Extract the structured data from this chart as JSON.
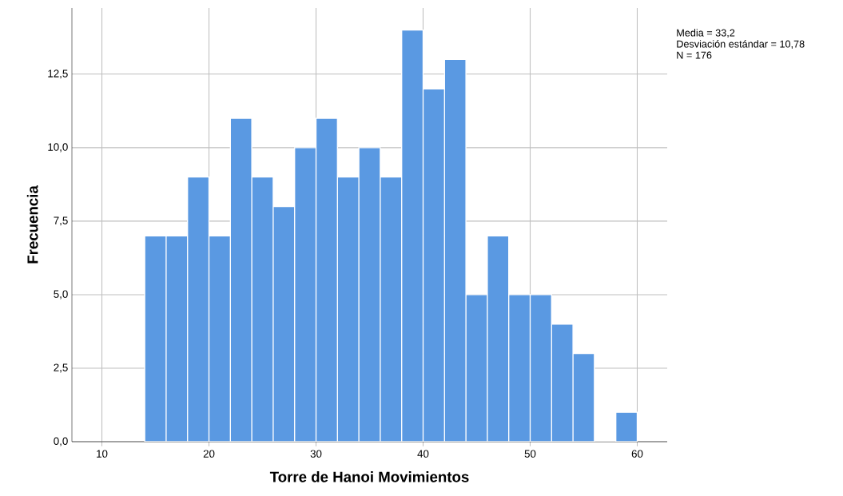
{
  "chart_data": {
    "type": "histogram",
    "xlabel": "Torre de Hanoi Movimientos",
    "ylabel": "Frecuencia",
    "bins": [
      14,
      16,
      18,
      20,
      22,
      24,
      26,
      28,
      30,
      32,
      34,
      36,
      38,
      40,
      42,
      44,
      46,
      48,
      50,
      52,
      54,
      56,
      58,
      60
    ],
    "values": [
      7,
      7,
      9,
      7,
      11,
      9,
      8,
      10,
      11,
      9,
      10,
      9,
      14,
      12,
      13,
      5,
      7,
      5,
      5,
      4,
      3,
      0,
      1
    ],
    "color": "#5a99e2",
    "xlim": [
      7.2,
      62.8
    ],
    "ylim": [
      0,
      14.75
    ],
    "xticks": [
      10,
      20,
      30,
      40,
      50,
      60
    ],
    "yticks": [
      {
        "value": 0,
        "label": "0,0"
      },
      {
        "value": 2.5,
        "label": "2,5"
      },
      {
        "value": 5,
        "label": "5,0"
      },
      {
        "value": 7.5,
        "label": "7,5"
      },
      {
        "value": 10,
        "label": "10,0"
      },
      {
        "value": 12.5,
        "label": "12,5"
      }
    ],
    "grid": true,
    "annotations": [
      "Media = 33,2",
      "Desviación estándar = 10,78",
      "N = 176"
    ]
  }
}
